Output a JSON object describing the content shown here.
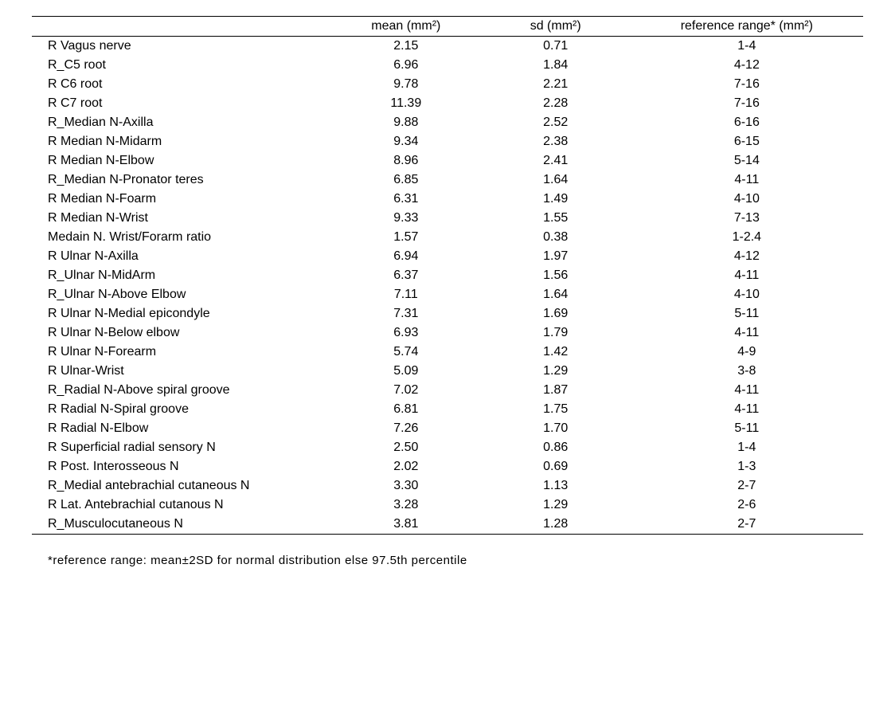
{
  "table": {
    "headers": {
      "name": "",
      "mean": "mean (mm²)",
      "sd": "sd (mm²)",
      "ref": "reference range* (mm²)"
    },
    "rows": [
      {
        "name": "R Vagus   nerve",
        "mean": "2.15",
        "sd": "0.71",
        "ref": "1-4"
      },
      {
        "name": "R_C5 root",
        "mean": "6.96",
        "sd": "1.84",
        "ref": "4-12"
      },
      {
        "name": "R C6 root",
        "mean": "9.78",
        "sd": "2.21",
        "ref": "7-16"
      },
      {
        "name": "R C7 root",
        "mean": "11.39",
        "sd": "2.28",
        "ref": "7-16"
      },
      {
        "name": "R_Median N-Axilla",
        "mean": "9.88",
        "sd": "2.52",
        "ref": "6-16"
      },
      {
        "name": "R Median N-Midarm",
        "mean": "9.34",
        "sd": "2.38",
        "ref": "6-15"
      },
      {
        "name": "R Median N-Elbow",
        "mean": "8.96",
        "sd": "2.41",
        "ref": "5-14"
      },
      {
        "name": "R_Median N-Pronator teres",
        "mean": "6.85",
        "sd": "1.64",
        "ref": "4-11"
      },
      {
        "name": "R Median N-Foarm",
        "mean": "6.31",
        "sd": "1.49",
        "ref": "4-10"
      },
      {
        "name": "R Median N-Wrist",
        "mean": "9.33",
        "sd": "1.55",
        "ref": "7-13"
      },
      {
        "name": "Medain N. Wrist/Forarm ratio",
        "mean": "1.57",
        "sd": "0.38",
        "ref": "1-2.4"
      },
      {
        "name": "R Ulnar N-Axilla",
        "mean": "6.94",
        "sd": "1.97",
        "ref": "4-12"
      },
      {
        "name": "R_Ulnar N-MidArm",
        "mean": "6.37",
        "sd": "1.56",
        "ref": "4-11"
      },
      {
        "name": "R_Ulnar N-Above Elbow",
        "mean": "7.11",
        "sd": "1.64",
        "ref": "4-10"
      },
      {
        "name": "R Ulnar N-Medial epicondyle",
        "mean": "7.31",
        "sd": "1.69",
        "ref": "5-11"
      },
      {
        "name": "R Ulnar N-Below elbow",
        "mean": "6.93",
        "sd": "1.79",
        "ref": "4-11"
      },
      {
        "name": "R Ulnar N-Forearm",
        "mean": "5.74",
        "sd": "1.42",
        "ref": "4-9"
      },
      {
        "name": "R Ulnar-Wrist",
        "mean": "5.09",
        "sd": "1.29",
        "ref": "3-8"
      },
      {
        "name": "R_Radial N-Above spiral groove",
        "mean": "7.02",
        "sd": "1.87",
        "ref": "4-11"
      },
      {
        "name": "R Radial N-Spiral groove",
        "mean": "6.81",
        "sd": "1.75",
        "ref": "4-11"
      },
      {
        "name": "R Radial N-Elbow",
        "mean": "7.26",
        "sd": "1.70",
        "ref": "5-11"
      },
      {
        "name": "R Superficial radial sensory N",
        "mean": "2.50",
        "sd": "0.86",
        "ref": "1-4"
      },
      {
        "name": "R Post. Interosseous N",
        "mean": "2.02",
        "sd": "0.69",
        "ref": "1-3"
      },
      {
        "name": "R_Medial antebrachial cutaneous N",
        "mean": "3.30",
        "sd": "1.13",
        "ref": "2-7"
      },
      {
        "name": "R Lat. Antebrachial cutanous N",
        "mean": "3.28",
        "sd": "1.29",
        "ref": "2-6"
      },
      {
        "name": "R_Musculocutaneous N",
        "mean": "3.81",
        "sd": "1.28",
        "ref": "2-7"
      }
    ]
  },
  "footnote": "*reference   range: mean±2SD for normal distribution else 97.5th percentile"
}
